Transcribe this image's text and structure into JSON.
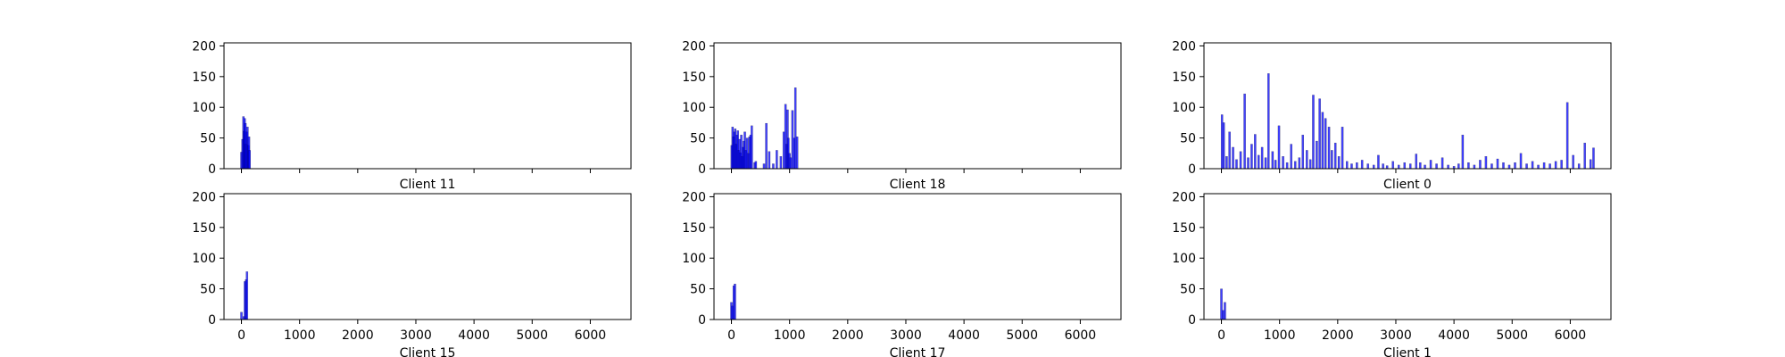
{
  "figure": {
    "background": "#ffffff",
    "bar_color": "#0000ff",
    "bar_edge_color": "#000000",
    "axis_color": "#000000"
  },
  "chart_data": [
    {
      "type": "bar",
      "xlabel": "Client 11",
      "xlim": [
        -300,
        6700
      ],
      "ylim": [
        0,
        205
      ],
      "xticks": [
        0,
        1000,
        2000,
        3000,
        4000,
        5000,
        6000
      ],
      "xtick_labels_visible": false,
      "yticks": [
        0,
        50,
        100,
        150,
        200
      ],
      "ytick_labels": [
        "0",
        "50",
        "100",
        "150",
        "200"
      ],
      "grid": false,
      "x": [
        0,
        18,
        34,
        45,
        56,
        68,
        80,
        92,
        104,
        118,
        130,
        140
      ],
      "values": [
        27,
        48,
        85,
        61,
        82,
        74,
        40,
        60,
        68,
        38,
        52,
        30
      ]
    },
    {
      "type": "bar",
      "xlabel": "Client 18",
      "xlim": [
        -300,
        6700
      ],
      "ylim": [
        0,
        205
      ],
      "xticks": [
        0,
        1000,
        2000,
        3000,
        4000,
        5000,
        6000
      ],
      "xtick_labels_visible": false,
      "yticks": [
        0,
        50,
        100,
        150,
        200
      ],
      "ytick_labels": [
        "0",
        "50",
        "100",
        "150",
        "200"
      ],
      "grid": false,
      "x": [
        5,
        20,
        35,
        50,
        65,
        80,
        95,
        110,
        125,
        140,
        155,
        170,
        185,
        200,
        215,
        230,
        250,
        270,
        290,
        310,
        330,
        350,
        400,
        420,
        560,
        600,
        650,
        720,
        780,
        850,
        900,
        930,
        950,
        965,
        980,
        1000,
        1020,
        1050,
        1080,
        1100,
        1130
      ],
      "values": [
        38,
        68,
        52,
        60,
        65,
        40,
        55,
        62,
        30,
        48,
        26,
        55,
        20,
        35,
        45,
        60,
        30,
        50,
        25,
        52,
        55,
        70,
        10,
        12,
        8,
        74,
        28,
        8,
        30,
        20,
        60,
        105,
        40,
        96,
        50,
        25,
        18,
        95,
        50,
        132,
        52
      ]
    },
    {
      "type": "bar",
      "xlabel": "Client 0",
      "xlim": [
        -300,
        6700
      ],
      "ylim": [
        0,
        205
      ],
      "xticks": [
        0,
        1000,
        2000,
        3000,
        4000,
        5000,
        6000
      ],
      "xtick_labels_visible": false,
      "yticks": [
        0,
        50,
        100,
        150,
        200
      ],
      "ytick_labels": [
        "0",
        "50",
        "100",
        "150",
        "200"
      ],
      "grid": false,
      "x": [
        10,
        40,
        90,
        140,
        200,
        260,
        330,
        400,
        460,
        520,
        580,
        640,
        700,
        760,
        810,
        880,
        930,
        990,
        1060,
        1130,
        1200,
        1270,
        1340,
        1400,
        1470,
        1530,
        1580,
        1640,
        1690,
        1740,
        1790,
        1850,
        1900,
        1960,
        2020,
        2080,
        2160,
        2240,
        2330,
        2420,
        2520,
        2620,
        2700,
        2780,
        2850,
        2950,
        3050,
        3150,
        3250,
        3350,
        3420,
        3500,
        3600,
        3700,
        3800,
        3900,
        4000,
        4080,
        4150,
        4250,
        4350,
        4450,
        4550,
        4650,
        4750,
        4850,
        4950,
        5050,
        5150,
        5250,
        5350,
        5450,
        5550,
        5650,
        5750,
        5850,
        5950,
        6050,
        6150,
        6250,
        6350,
        6400
      ],
      "values": [
        88,
        75,
        20,
        60,
        35,
        15,
        28,
        122,
        18,
        40,
        56,
        22,
        35,
        18,
        155,
        28,
        14,
        70,
        20,
        10,
        40,
        12,
        18,
        55,
        30,
        15,
        120,
        45,
        114,
        92,
        82,
        68,
        30,
        42,
        20,
        68,
        12,
        8,
        10,
        14,
        8,
        6,
        22,
        8,
        5,
        12,
        6,
        10,
        8,
        24,
        10,
        6,
        14,
        8,
        18,
        6,
        4,
        8,
        55,
        10,
        6,
        14,
        20,
        8,
        16,
        10,
        6,
        10,
        25,
        8,
        12,
        6,
        10,
        8,
        12,
        14,
        108,
        22,
        8,
        42,
        15,
        34
      ]
    },
    {
      "type": "bar",
      "xlabel": "Client 15",
      "xlim": [
        -300,
        6700
      ],
      "ylim": [
        0,
        205
      ],
      "xticks": [
        0,
        1000,
        2000,
        3000,
        4000,
        5000,
        6000
      ],
      "xtick_labels": [
        "0",
        "1000",
        "2000",
        "3000",
        "4000",
        "5000",
        "6000"
      ],
      "yticks": [
        0,
        50,
        100,
        150,
        200
      ],
      "ytick_labels": [
        "0",
        "50",
        "100",
        "150",
        "200"
      ],
      "grid": false,
      "x": [
        0,
        40,
        60,
        80,
        95
      ],
      "values": [
        12,
        5,
        62,
        65,
        78
      ]
    },
    {
      "type": "bar",
      "xlabel": "Client 17",
      "xlim": [
        -300,
        6700
      ],
      "ylim": [
        0,
        205
      ],
      "xticks": [
        0,
        1000,
        2000,
        3000,
        4000,
        5000,
        6000
      ],
      "xtick_labels": [
        "0",
        "1000",
        "2000",
        "3000",
        "4000",
        "5000",
        "6000"
      ],
      "yticks": [
        0,
        50,
        100,
        150,
        200
      ],
      "ytick_labels": [
        "0",
        "50",
        "100",
        "150",
        "200"
      ],
      "grid": false,
      "x": [
        0,
        15,
        40,
        60
      ],
      "values": [
        28,
        22,
        55,
        58
      ]
    },
    {
      "type": "bar",
      "xlabel": "Client 1",
      "xlim": [
        -300,
        6700
      ],
      "ylim": [
        0,
        205
      ],
      "xticks": [
        0,
        1000,
        2000,
        3000,
        4000,
        5000,
        6000
      ],
      "xtick_labels": [
        "0",
        "1000",
        "2000",
        "3000",
        "4000",
        "5000",
        "6000"
      ],
      "yticks": [
        0,
        50,
        100,
        150,
        200
      ],
      "ytick_labels": [
        "0",
        "50",
        "100",
        "150",
        "200"
      ],
      "grid": false,
      "x": [
        0,
        30,
        60
      ],
      "values": [
        50,
        15,
        28
      ]
    }
  ]
}
